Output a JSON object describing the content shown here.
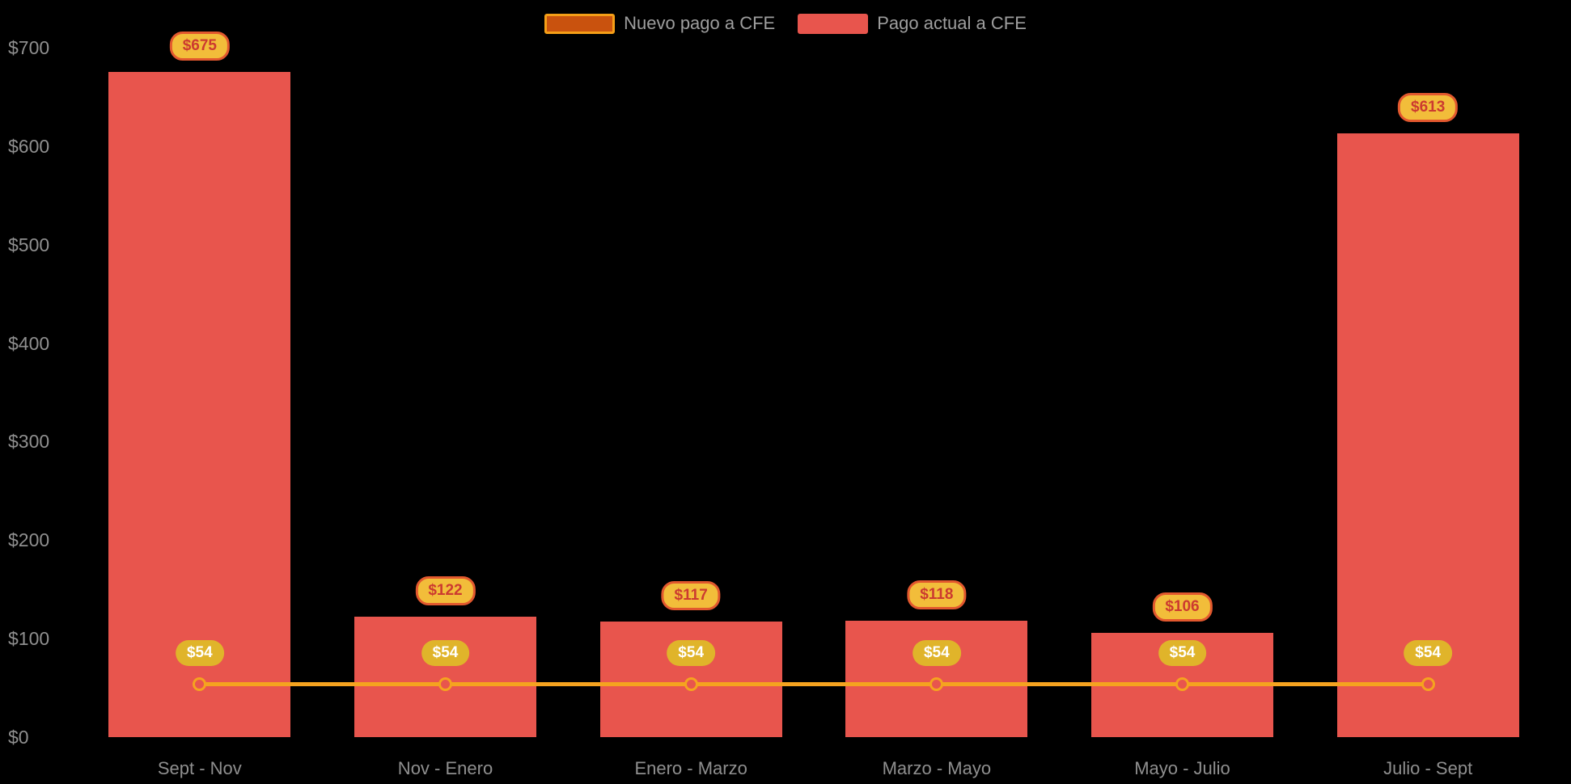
{
  "legend": [
    {
      "label": "Nuevo pago a CFE",
      "fill": "#c9520e",
      "border": "#f59f17"
    },
    {
      "label": "Pago actual a CFE",
      "fill": "#e8554d",
      "border": "#e8554d"
    }
  ],
  "chart_data": {
    "type": "bar+line",
    "title": "",
    "categories": [
      "Sept - Nov",
      "Nov - Enero",
      "Enero - Marzo",
      "Marzo - Mayo",
      "Mayo - Julio",
      "Julio - Sept"
    ],
    "series": [
      {
        "name": "Pago actual a CFE",
        "kind": "bar",
        "values": [
          675,
          122,
          117,
          118,
          106,
          613
        ],
        "labels": [
          "$675",
          "$122",
          "$117",
          "$118",
          "$106",
          "$613"
        ],
        "color": "#e8554d"
      },
      {
        "name": "Nuevo pago a CFE",
        "kind": "line",
        "values": [
          54,
          54,
          54,
          54,
          54,
          54
        ],
        "labels": [
          "$54",
          "$54",
          "$54",
          "$54",
          "$54",
          "$54"
        ],
        "color": "#f5a31f",
        "marker_fill": "#e8554d"
      }
    ],
    "ylim": [
      0,
      700
    ],
    "yticks": [
      "$0",
      "$100",
      "$200",
      "$300",
      "$400",
      "$500",
      "$600",
      "$700"
    ],
    "grid": false,
    "legend_position": "top",
    "background": "#000000"
  }
}
